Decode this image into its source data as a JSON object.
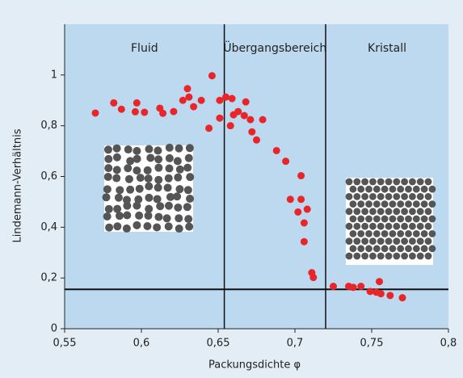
{
  "chart_data": {
    "type": "scatter",
    "x_label": "Packungsdichte φ",
    "y_label": "Lindemann-Verhältnis",
    "xlim": [
      0.55,
      0.8
    ],
    "ylim": [
      0,
      1.2
    ],
    "xticks": [
      {
        "value": 0.55,
        "label": "0,55"
      },
      {
        "value": 0.6,
        "label": "0,6"
      },
      {
        "value": 0.65,
        "label": "0,65"
      },
      {
        "value": 0.7,
        "label": "0,7"
      },
      {
        "value": 0.75,
        "label": "0,75"
      },
      {
        "value": 0.8,
        "label": "0,8"
      }
    ],
    "yticks": [
      0,
      {
        "value": 0.2,
        "label": "0,2"
      },
      {
        "value": 0.4,
        "label": "0,4"
      },
      {
        "value": 0.6,
        "label": "0,6"
      },
      {
        "value": 0.8,
        "label": "0,8"
      },
      1
    ],
    "color": "#e8262a",
    "region_boundaries": [
      0.654,
      0.72
    ],
    "regions": [
      "Fluid",
      "Übergangsbereich",
      "Kristall"
    ],
    "threshold": 0.155,
    "x": [
      0.57,
      0.582,
      0.587,
      0.597,
      0.596,
      0.602,
      0.612,
      0.614,
      0.621,
      0.627,
      0.63,
      0.631,
      0.634,
      0.639,
      0.646,
      0.644,
      0.651,
      0.651,
      0.655,
      0.658,
      0.659,
      0.66,
      0.663,
      0.667,
      0.668,
      0.671,
      0.672,
      0.675,
      0.679,
      0.688,
      0.694,
      0.697,
      0.704,
      0.702,
      0.704,
      0.706,
      0.706,
      0.708,
      0.711,
      0.712,
      0.725,
      0.735,
      0.738,
      0.743,
      0.749,
      0.753,
      0.755,
      0.756,
      0.762,
      0.77
    ],
    "y": [
      0.85,
      0.89,
      0.865,
      0.89,
      0.855,
      0.853,
      0.869,
      0.849,
      0.856,
      0.9,
      0.946,
      0.913,
      0.875,
      0.9,
      0.997,
      0.79,
      0.9,
      0.83,
      0.913,
      0.8,
      0.907,
      0.843,
      0.856,
      0.84,
      0.894,
      0.824,
      0.776,
      0.744,
      0.824,
      0.702,
      0.66,
      0.51,
      0.603,
      0.46,
      0.51,
      0.417,
      0.343,
      0.471,
      0.221,
      0.202,
      0.167,
      0.167,
      0.163,
      0.167,
      0.147,
      0.144,
      0.186,
      0.138,
      0.131,
      0.122
    ]
  }
}
